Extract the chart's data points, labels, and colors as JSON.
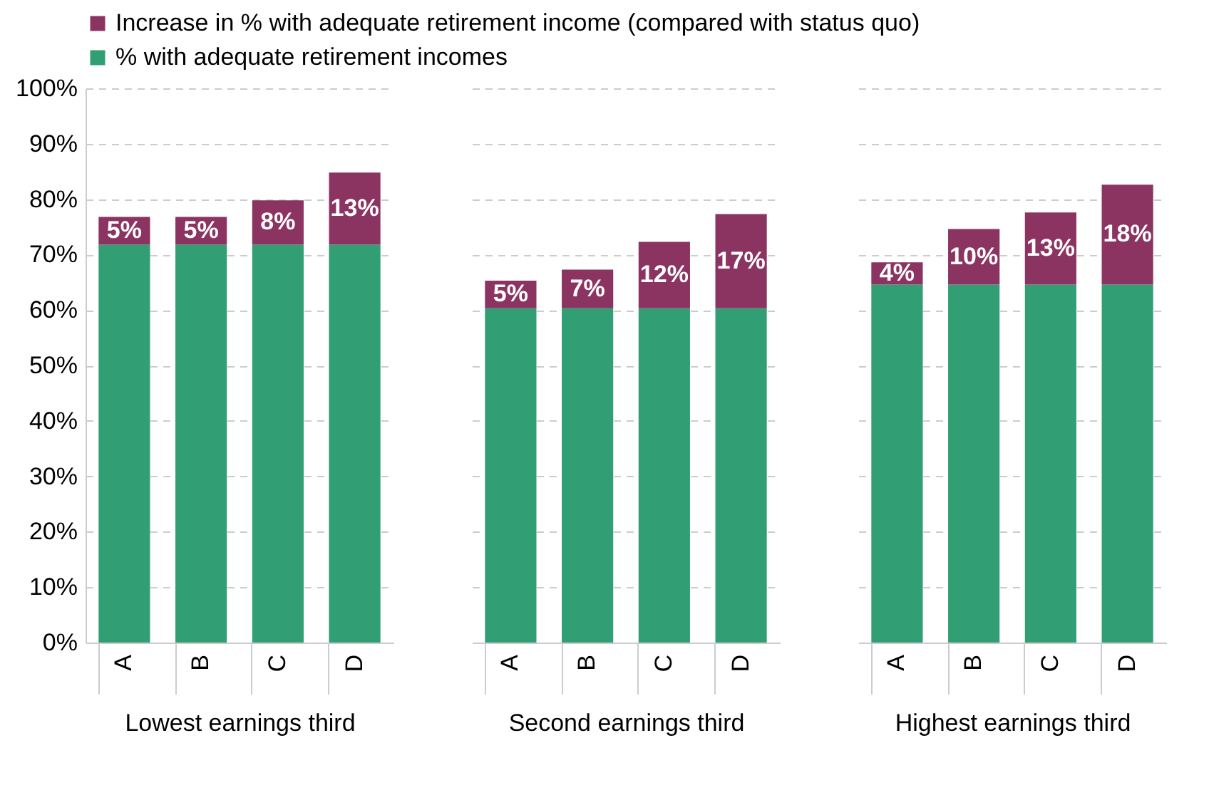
{
  "chart_data": [
    {
      "type": "bar",
      "stacked": true,
      "categories": [
        "A",
        "B",
        "C",
        "D"
      ],
      "xlabel": "Lowest earnings third",
      "legend": "top",
      "grid": "y",
      "ylim": [
        0,
        100
      ],
      "yticks": [
        {
          "value": 0,
          "label": "0%"
        },
        {
          "value": 10,
          "label": "10%"
        },
        {
          "value": 20,
          "label": "20%"
        },
        {
          "value": 30,
          "label": "30%"
        },
        {
          "value": 40,
          "label": "40%"
        },
        {
          "value": 50,
          "label": "50%"
        },
        {
          "value": 60,
          "label": "60%"
        },
        {
          "value": 70,
          "label": "70%"
        },
        {
          "value": 80,
          "label": "80%"
        },
        {
          "value": 90,
          "label": "90%"
        },
        {
          "value": 100,
          "label": "100%"
        }
      ],
      "series": [
        {
          "name": "% with adequate retirement incomes",
          "color": "#319e74",
          "values": [
            71.8,
            71.8,
            71.8,
            71.8
          ]
        },
        {
          "name": "Increase in % with adequate retirement income (compared with status quo)",
          "color": "#8c3461",
          "values": [
            5,
            5,
            8,
            13
          ],
          "value_labels": [
            "5%",
            "5%",
            "8%",
            "13%"
          ]
        }
      ]
    },
    {
      "type": "bar",
      "stacked": true,
      "categories": [
        "A",
        "B",
        "C",
        "D"
      ],
      "xlabel": "Second earnings third",
      "tick_labels": "x",
      "grid": "y",
      "ylim": [
        0,
        100
      ],
      "yticks": [
        0,
        10,
        20,
        30,
        40,
        50,
        60,
        70,
        80,
        90,
        100
      ],
      "series": [
        {
          "color": "#319e74",
          "values": [
            60.3,
            60.3,
            60.3,
            60.3
          ]
        },
        {
          "color": "#8c3461",
          "values": [
            5,
            7,
            12,
            17
          ],
          "value_labels": [
            "5%",
            "7%",
            "12%",
            "17%"
          ]
        }
      ]
    },
    {
      "type": "bar",
      "stacked": true,
      "categories": [
        "A",
        "B",
        "C",
        "D"
      ],
      "xlabel": "Highest earnings third",
      "tick_labels": "x",
      "grid": "y",
      "ylim": [
        0,
        100
      ],
      "yticks": [
        0,
        10,
        20,
        30,
        40,
        50,
        60,
        70,
        80,
        90,
        100
      ],
      "series": [
        {
          "color": "#319e74",
          "values": [
            64.6,
            64.6,
            64.6,
            64.6
          ]
        },
        {
          "color": "#8c3461",
          "values": [
            4,
            10,
            13,
            18
          ],
          "value_labels": [
            "4%",
            "10%",
            "13%",
            "18%"
          ]
        }
      ]
    }
  ]
}
